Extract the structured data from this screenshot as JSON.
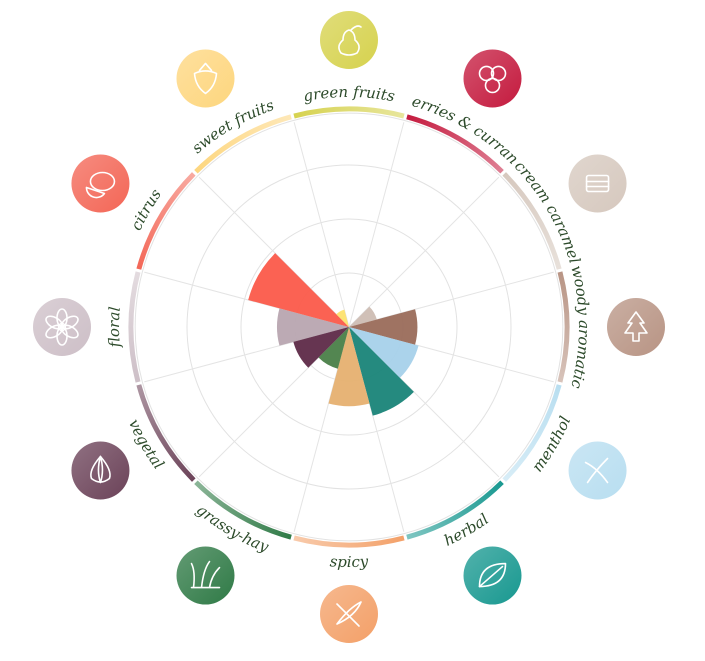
{
  "chart_data": {
    "type": "polar-area",
    "title": "",
    "rmax": 100,
    "grid": true,
    "categories": [
      {
        "label": "floral",
        "value": 40,
        "color": "#b8a5b0",
        "ring": "#cdbfc7",
        "icon": "flower-icon"
      },
      {
        "label": "citrus",
        "value": 58,
        "color": "#fb5a4a",
        "ring": "#f36656",
        "icon": "lemon-icon"
      },
      {
        "label": "sweet fruits",
        "value": 10,
        "color": "#fde26e",
        "ring": "#fdd67e",
        "icon": "strawberry-icon"
      },
      {
        "label": "green fruits",
        "value": 0,
        "color": "#d3d450",
        "ring": "#d6d24e",
        "icon": "pear-icon"
      },
      {
        "label": "berries & currant",
        "value": 0,
        "color": "#c8103a",
        "ring": "#c41a3e",
        "icon": "berries-icon"
      },
      {
        "label": "cream caramel",
        "value": 16,
        "color": "#cdbdb3",
        "ring": "#d6c8be",
        "icon": "caramel-icon"
      },
      {
        "label": "woody aromatic",
        "value": 38,
        "color": "#9a6b5a",
        "ring": "#b89484",
        "icon": "pine-tree-icon"
      },
      {
        "label": "menthol",
        "value": 40,
        "color": "#a6d1ea",
        "ring": "#b8def0",
        "icon": "mint-icon"
      },
      {
        "label": "herbal",
        "value": 51,
        "color": "#198478",
        "ring": "#189890",
        "icon": "leaf-icon"
      },
      {
        "label": "spicy",
        "value": 44,
        "color": "#e6b070",
        "ring": "#f3a068",
        "icon": "chili-icon"
      },
      {
        "label": "grassy-hay",
        "value": 24,
        "color": "#4a8048",
        "ring": "#2f7a46",
        "icon": "grass-icon"
      },
      {
        "label": "vegetal",
        "value": 32,
        "color": "#5e2a48",
        "ring": "#6b4258",
        "icon": "onion-icon"
      }
    ]
  }
}
